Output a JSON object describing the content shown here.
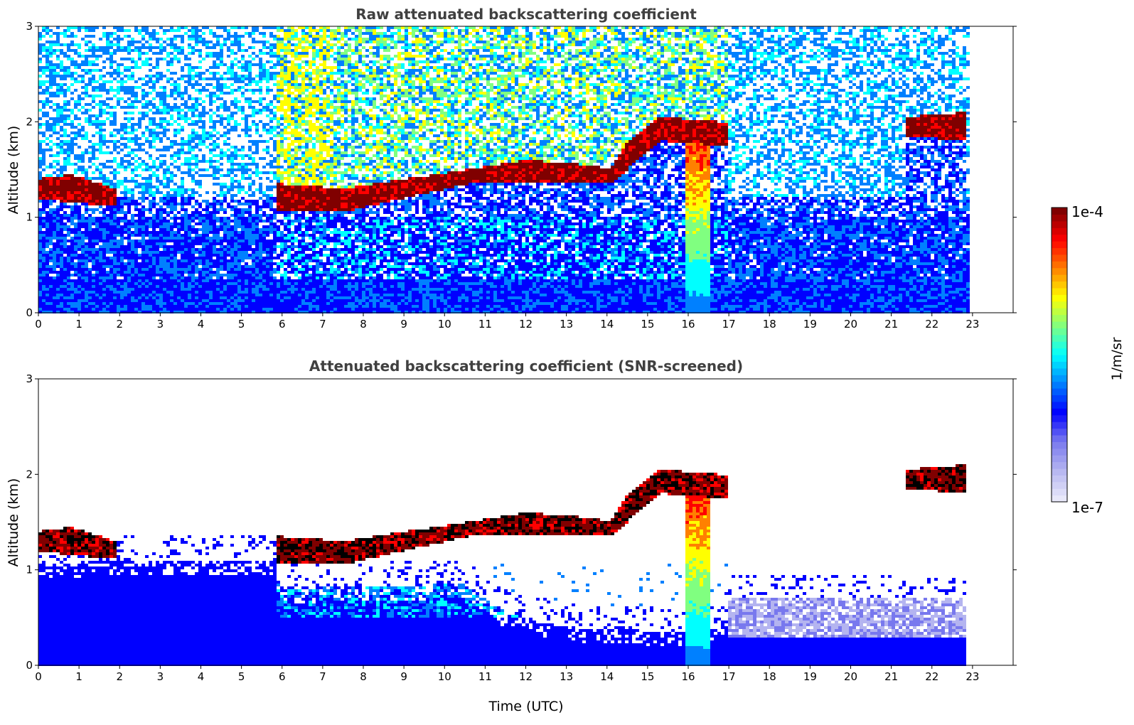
{
  "chart_data": [
    {
      "type": "heatmap",
      "title": "Raw attenuated backscattering coefficient",
      "xlabel": "",
      "ylabel": "Altitude (km)",
      "xlim": [
        0,
        24
      ],
      "ylim": [
        0,
        3
      ],
      "x_ticks": [
        "0",
        "1",
        "2",
        "3",
        "4",
        "5",
        "6",
        "7",
        "8",
        "9",
        "10",
        "11",
        "12",
        "13",
        "14",
        "15",
        "16",
        "17",
        "18",
        "19",
        "20",
        "21",
        "22",
        "23"
      ],
      "y_ticks": [
        "0",
        "1",
        "2",
        "3"
      ],
      "data_end_hour": 22.85,
      "screened": false,
      "cloud_layer": [
        {
          "t": 0.0,
          "base_km": 1.2,
          "top_km": 1.4
        },
        {
          "t": 0.8,
          "base_km": 1.15,
          "top_km": 1.45
        },
        {
          "t": 1.9,
          "base_km": 1.12,
          "top_km": 1.3
        },
        {
          "t": 6.0,
          "base_km": 1.05,
          "top_km": 1.35
        },
        {
          "t": 7.5,
          "base_km": 1.05,
          "top_km": 1.3
        },
        {
          "t": 9.0,
          "base_km": 1.2,
          "top_km": 1.4
        },
        {
          "t": 10.6,
          "base_km": 1.35,
          "top_km": 1.5
        },
        {
          "t": 12.0,
          "base_km": 1.35,
          "top_km": 1.6
        },
        {
          "t": 13.5,
          "base_km": 1.35,
          "top_km": 1.55
        },
        {
          "t": 14.1,
          "base_km": 1.35,
          "top_km": 1.5
        },
        {
          "t": 14.5,
          "base_km": 1.5,
          "top_km": 1.8
        },
        {
          "t": 15.3,
          "base_km": 1.8,
          "top_km": 2.05
        },
        {
          "t": 16.8,
          "base_km": 1.75,
          "top_km": 2.0
        },
        {
          "t": 21.4,
          "base_km": 1.85,
          "top_km": 2.05
        },
        {
          "t": 22.85,
          "base_km": 1.8,
          "top_km": 2.1
        }
      ],
      "precipitation_shaft": {
        "t_start": 15.9,
        "t_end": 16.5,
        "top_km": 1.95
      }
    },
    {
      "type": "heatmap",
      "title": "Attenuated backscattering coefficient (SNR-screened)",
      "xlabel": "Time (UTC)",
      "ylabel": "Altitude (km)",
      "xlim": [
        0,
        24
      ],
      "ylim": [
        0,
        3
      ],
      "x_ticks": [
        "0",
        "1",
        "2",
        "3",
        "4",
        "5",
        "6",
        "7",
        "8",
        "9",
        "10",
        "11",
        "12",
        "13",
        "14",
        "15",
        "16",
        "17",
        "18",
        "19",
        "20",
        "21",
        "22",
        "23"
      ],
      "y_ticks": [
        "0",
        "1",
        "2",
        "3"
      ],
      "data_end_hour": 22.85,
      "screened": true,
      "boundary_layer_top_km": [
        {
          "t": 0.0,
          "km": 1.05
        },
        {
          "t": 2.0,
          "km": 1.1
        },
        {
          "t": 5.8,
          "km": 1.1
        },
        {
          "t": 6.0,
          "km": 0.8
        },
        {
          "t": 10.5,
          "km": 0.85
        },
        {
          "t": 11.5,
          "km": 0.55
        },
        {
          "t": 13.0,
          "km": 0.4
        },
        {
          "t": 15.5,
          "km": 0.35
        },
        {
          "t": 16.9,
          "km": 0.4
        },
        {
          "t": 17.0,
          "km": 0.7
        },
        {
          "t": 22.85,
          "km": 0.7
        }
      ]
    }
  ],
  "colorbar": {
    "label": "1/m/sr",
    "max_label": "1e-4",
    "min_label": "1e-7",
    "colormap": [
      "#e8e8fa",
      "#b4b4f0",
      "#7878ee",
      "#0000ff",
      "#0080ff",
      "#00ffff",
      "#80ff80",
      "#ffff00",
      "#ff8000",
      "#ff0000",
      "#800000"
    ]
  }
}
